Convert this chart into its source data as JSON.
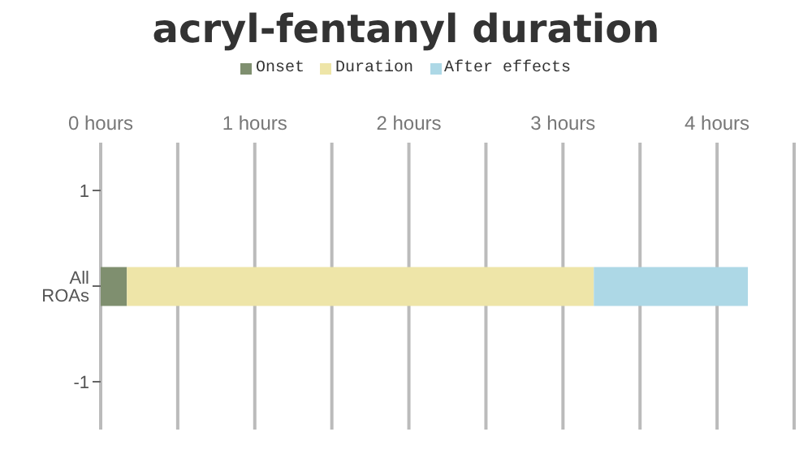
{
  "chart_data": {
    "type": "bar",
    "title": "acryl-fentanyl duration",
    "orientation": "horizontal",
    "stacked": true,
    "categories": [
      "1",
      "All ROAs",
      "-1"
    ],
    "series": [
      {
        "name": "Onset",
        "color": "#7f8f6f",
        "values": [
          null,
          0.17,
          null
        ]
      },
      {
        "name": "Duration",
        "color": "#eee5a8",
        "values": [
          null,
          3.03,
          null
        ]
      },
      {
        "name": "After effects",
        "color": "#add8e6",
        "values": [
          null,
          1.0,
          null
        ]
      }
    ],
    "xlim": [
      0,
      4.5
    ],
    "xticks": [
      {
        "value": 0,
        "label": "0 hours"
      },
      {
        "value": 0.5,
        "label": null
      },
      {
        "value": 1,
        "label": "1 hours"
      },
      {
        "value": 1.5,
        "label": null
      },
      {
        "value": 2,
        "label": "2 hours"
      },
      {
        "value": 2.5,
        "label": null
      },
      {
        "value": 3,
        "label": "3 hours"
      },
      {
        "value": 3.5,
        "label": null
      },
      {
        "value": 4,
        "label": "4 hours"
      },
      {
        "value": 4.5,
        "label": null
      }
    ],
    "grid": "x",
    "legend": "top"
  }
}
